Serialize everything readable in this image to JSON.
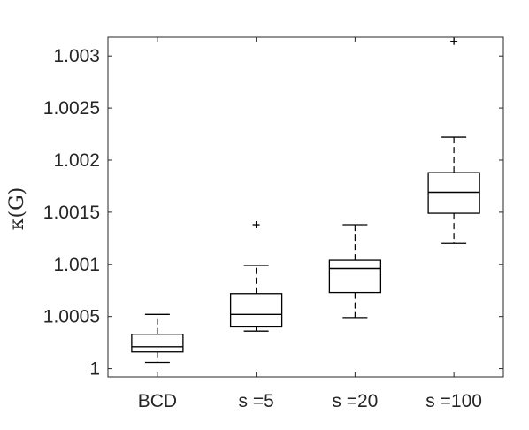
{
  "chart_data": {
    "type": "box",
    "title": "",
    "xlabel": "",
    "ylabel": "κ(G)",
    "ylim": [
      0.99992,
      1.00318
    ],
    "yticks": [
      1,
      1.0005,
      1.001,
      1.0015,
      1.002,
      1.0025,
      1.003
    ],
    "ytick_labels": [
      "1",
      "1.0005",
      "1.001",
      "1.0015",
      "1.002",
      "1.0025",
      "1.003"
    ],
    "categories": [
      "BCD",
      "s =5",
      "s =20",
      "s =100"
    ],
    "boxes": [
      {
        "category": "BCD",
        "whisker_low": 1.00006,
        "q1": 1.00016,
        "median": 1.00021,
        "q3": 1.00033,
        "whisker_high": 1.00052,
        "outliers": []
      },
      {
        "category": "s =5",
        "whisker_low": 1.00036,
        "q1": 1.0004,
        "median": 1.00052,
        "q3": 1.00072,
        "whisker_high": 1.00099,
        "outliers": [
          1.00138
        ]
      },
      {
        "category": "s =20",
        "whisker_low": 1.00049,
        "q1": 1.00073,
        "median": 1.00096,
        "q3": 1.00104,
        "whisker_high": 1.00138,
        "outliers": []
      },
      {
        "category": "s =100",
        "whisker_low": 1.0012,
        "q1": 1.00149,
        "median": 1.00169,
        "q3": 1.00188,
        "whisker_high": 1.00222,
        "outliers": [
          1.00314
        ]
      }
    ],
    "grid": false,
    "legend": "none"
  }
}
